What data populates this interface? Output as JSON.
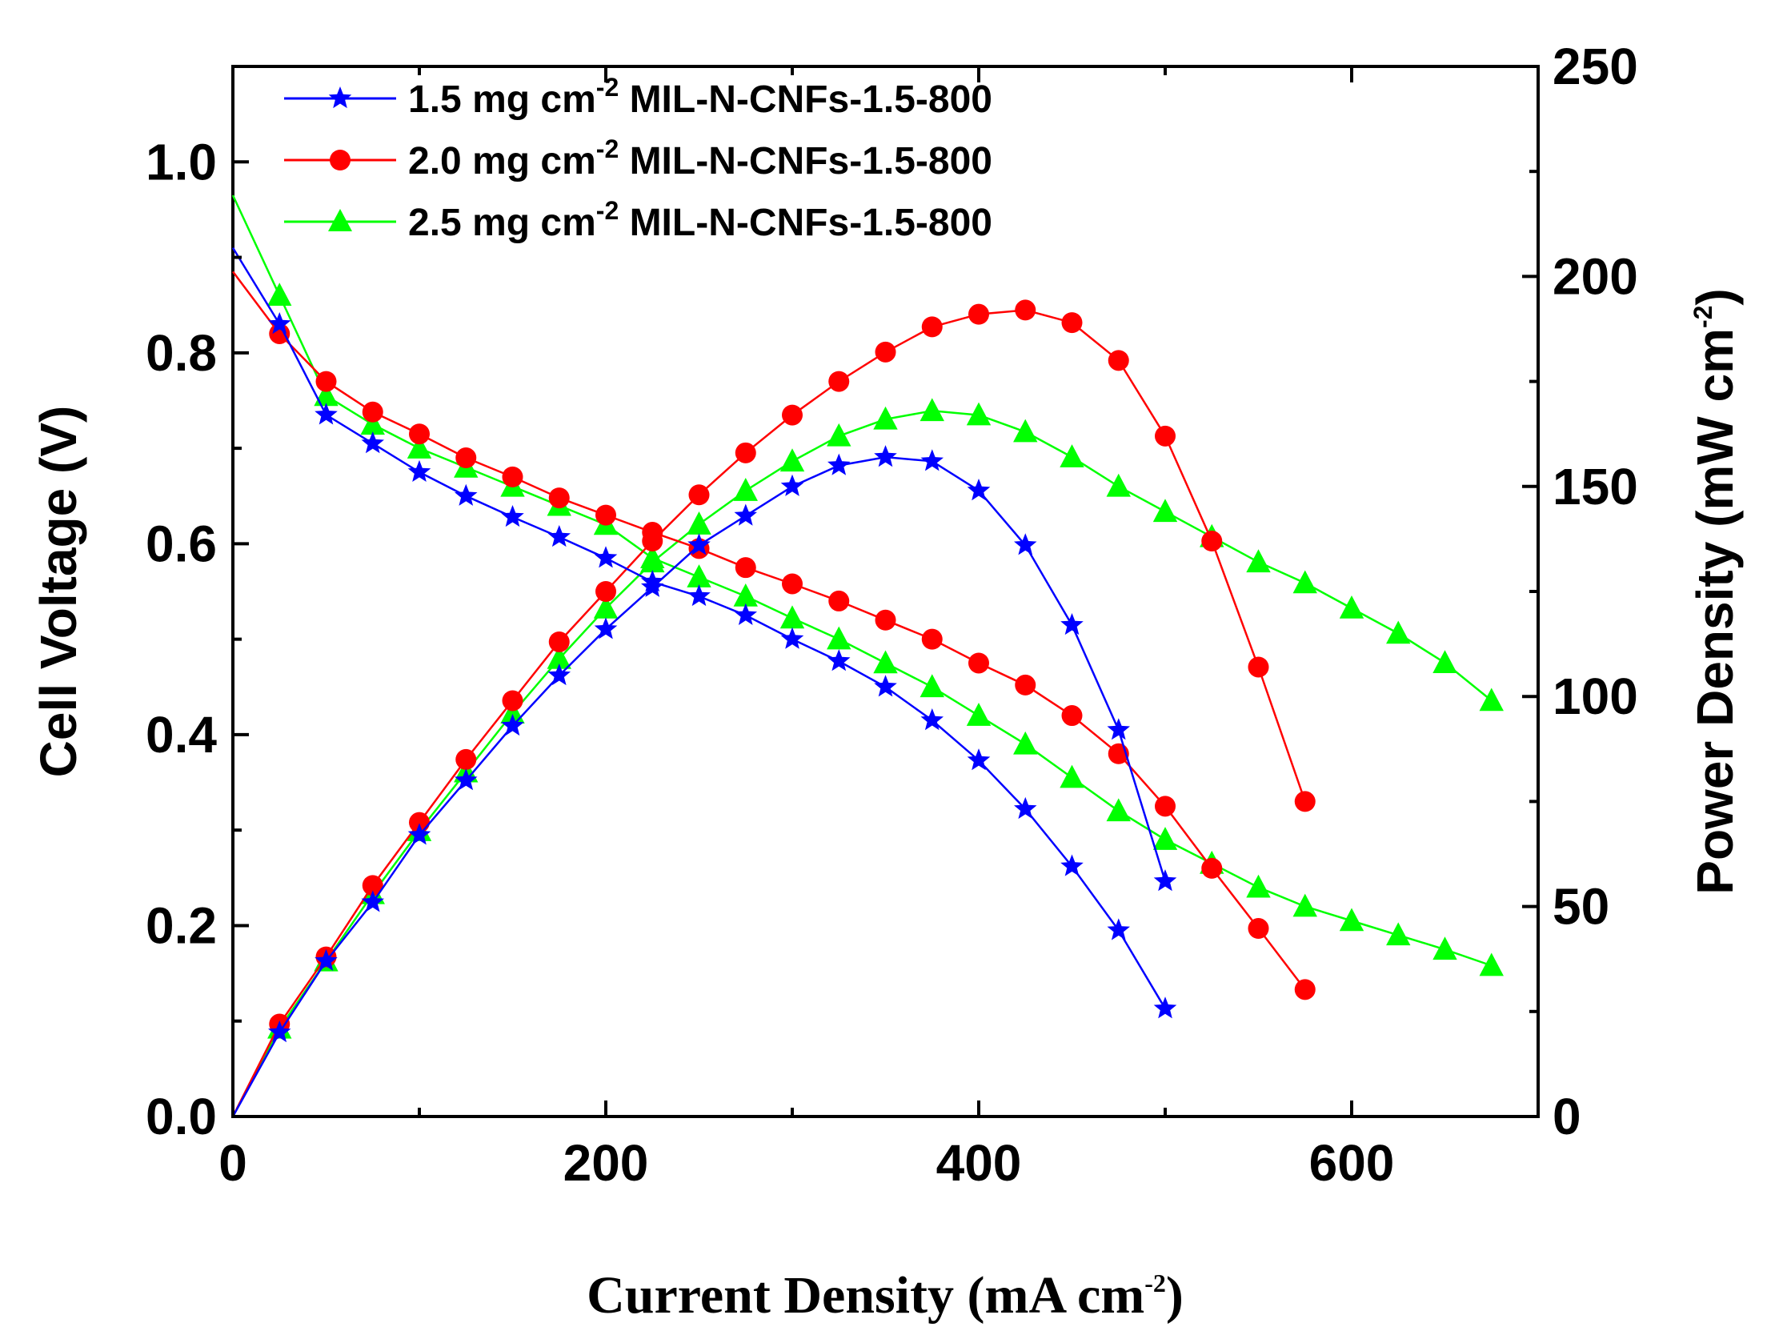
{
  "chart_data": {
    "type": "line",
    "title": "",
    "xlabel": {
      "main": "Current Density (mA cm",
      "sup": "-2",
      "close": ")"
    },
    "ylabel_left": "Cell Voltage (V)",
    "ylabel_right": {
      "main": "Power Density (mW cm",
      "sup": "-2",
      "close": ")"
    },
    "xlim": [
      0,
      700
    ],
    "ylim_left": [
      0,
      1.1
    ],
    "ylim_right": [
      0,
      250
    ],
    "x_ticks": [
      "0",
      "200",
      "400",
      "600"
    ],
    "y_left_ticks": [
      "0.0",
      "0.2",
      "0.4",
      "0.6",
      "0.8",
      "1.0"
    ],
    "y_right_ticks": [
      "0",
      "50",
      "100",
      "150",
      "200",
      "250"
    ],
    "legend_position": "top-left",
    "series": [
      {
        "name": {
          "pre": "1.5 mg cm",
          "sup": "-2",
          "post": " MIL-N-CNFs-1.5-800"
        },
        "color": "#0000ff",
        "marker": "star",
        "polarization": {
          "x": [
            0,
            25,
            50,
            75,
            100,
            125,
            150,
            175,
            200,
            225,
            250,
            275,
            300,
            325,
            350,
            375,
            400,
            425,
            450,
            475,
            500
          ],
          "y": [
            0.91,
            0.83,
            0.735,
            0.705,
            0.675,
            0.65,
            0.628,
            0.607,
            0.585,
            0.56,
            0.545,
            0.525,
            0.5,
            0.477,
            0.45,
            0.415,
            0.373,
            0.322,
            0.262,
            0.195,
            0.113
          ]
        },
        "power": {
          "x": [
            0,
            25,
            50,
            75,
            100,
            125,
            150,
            175,
            200,
            225,
            250,
            275,
            300,
            325,
            350,
            375,
            400,
            425,
            450,
            475,
            500
          ],
          "y": [
            0,
            20,
            37,
            51,
            67,
            80,
            93,
            105,
            116,
            126,
            136,
            143,
            150,
            155,
            157,
            156,
            149,
            136,
            117,
            92,
            56
          ]
        }
      },
      {
        "name": {
          "pre": "2.0 mg cm",
          "sup": "-2",
          "post": " MIL-N-CNFs-1.5-800"
        },
        "color": "#ff0000",
        "marker": "circle",
        "polarization": {
          "x": [
            0,
            25,
            50,
            75,
            100,
            125,
            150,
            175,
            200,
            225,
            250,
            275,
            300,
            325,
            350,
            375,
            400,
            425,
            450,
            475,
            500,
            525,
            550,
            575
          ],
          "y": [
            0.885,
            0.82,
            0.77,
            0.738,
            0.715,
            0.69,
            0.67,
            0.648,
            0.63,
            0.612,
            0.595,
            0.575,
            0.558,
            0.54,
            0.52,
            0.5,
            0.475,
            0.452,
            0.42,
            0.38,
            0.325,
            0.26,
            0.197,
            0.133
          ]
        },
        "power": {
          "x": [
            0,
            25,
            50,
            75,
            100,
            125,
            150,
            175,
            200,
            225,
            250,
            275,
            300,
            325,
            350,
            375,
            400,
            425,
            450,
            475,
            500,
            525,
            550,
            575
          ],
          "y": [
            0,
            22,
            38,
            55,
            70,
            85,
            99,
            113,
            125,
            137,
            148,
            158,
            167,
            175,
            182,
            188,
            191,
            192,
            189,
            180,
            162,
            137,
            107,
            75
          ]
        }
      },
      {
        "name": {
          "pre": "2.5 mg cm",
          "sup": "-2",
          "post": " MIL-N-CNFs-1.5-800"
        },
        "color": "#00ff00",
        "marker": "triangle",
        "polarization": {
          "x": [
            0,
            25,
            50,
            75,
            100,
            125,
            150,
            175,
            200,
            225,
            250,
            275,
            300,
            325,
            350,
            375,
            400,
            425,
            450,
            475,
            500,
            525,
            550,
            575,
            600,
            625,
            650,
            675
          ],
          "y": [
            0.965,
            0.86,
            0.755,
            0.725,
            0.7,
            0.68,
            0.66,
            0.64,
            0.62,
            0.585,
            0.565,
            0.545,
            0.522,
            0.5,
            0.475,
            0.45,
            0.42,
            0.39,
            0.355,
            0.32,
            0.29,
            0.265,
            0.24,
            0.22,
            0.205,
            0.19,
            0.175,
            0.158
          ]
        },
        "power": {
          "x": [
            0,
            25,
            50,
            75,
            100,
            125,
            150,
            175,
            200,
            225,
            250,
            275,
            300,
            325,
            350,
            375,
            400,
            425,
            450,
            475,
            500,
            525,
            550,
            575,
            600,
            625,
            650,
            675
          ],
          "y": [
            0,
            21,
            37,
            53,
            68,
            82,
            96,
            109,
            121,
            132,
            141,
            149,
            156,
            162,
            166,
            168,
            167,
            163,
            157,
            150,
            144,
            138,
            132,
            127,
            121,
            115,
            108,
            99
          ]
        }
      }
    ]
  }
}
